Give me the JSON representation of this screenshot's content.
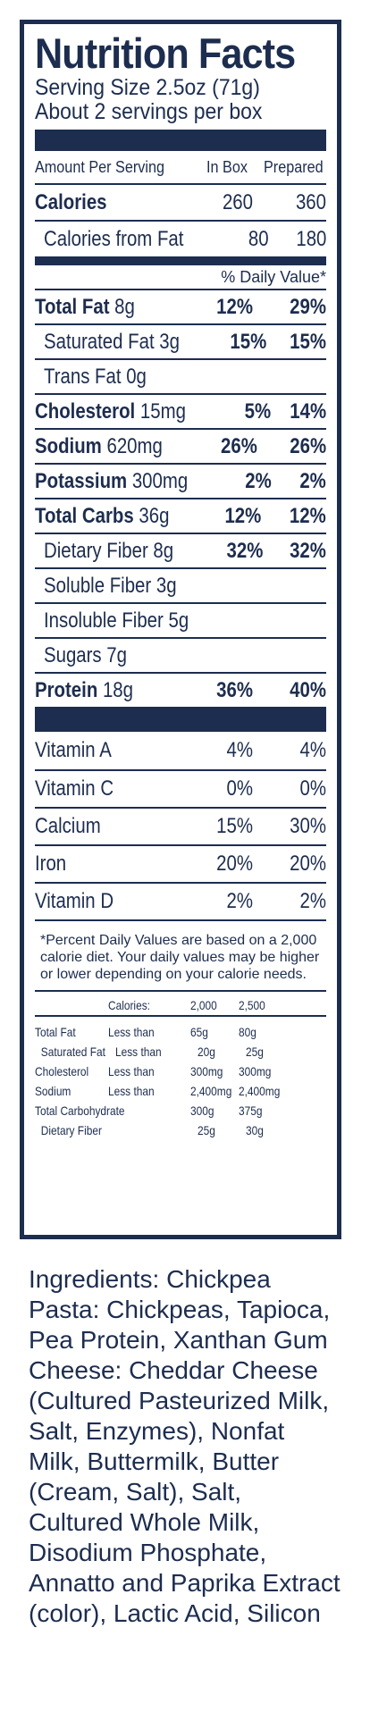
{
  "title": "Nutrition Facts",
  "serving_size": "Serving Size 2.5oz (71g)",
  "servings_per": "About 2 servings per box",
  "header": {
    "amount": "Amount Per Serving",
    "col1": "In Box",
    "col2": "Prepared"
  },
  "calories": {
    "label": "Calories",
    "v1": "260",
    "v2": "360"
  },
  "calories_fat": {
    "label": "Calories from Fat",
    "v1": "80",
    "v2": "180"
  },
  "dv_label": "% Daily Value*",
  "nutrients": [
    {
      "name": "Total Fat",
      "amount": " 8g",
      "v1": "12%",
      "v2": "29%",
      "bold": true,
      "indent": false
    },
    {
      "name": "Saturated Fat 3g",
      "amount": "",
      "v1": "15%",
      "v2": "15%",
      "bold": false,
      "indent": true
    },
    {
      "name": "Trans Fat 0g",
      "amount": "",
      "v1": "",
      "v2": "",
      "bold": false,
      "indent": true
    },
    {
      "name": "Cholesterol",
      "amount": " 15mg",
      "v1": "5%",
      "v2": "14%",
      "bold": true,
      "indent": false
    },
    {
      "name": "Sodium",
      "amount": " 620mg",
      "v1": "26%",
      "v2": "26%",
      "bold": true,
      "indent": false
    },
    {
      "name": "Potassium",
      "amount": " 300mg",
      "v1": "2%",
      "v2": "2%",
      "bold": true,
      "indent": false
    },
    {
      "name": "Total Carbs",
      "amount": " 36g",
      "v1": "12%",
      "v2": "12%",
      "bold": true,
      "indent": false
    },
    {
      "name": "Dietary Fiber 8g",
      "amount": "",
      "v1": "32%",
      "v2": "32%",
      "bold": false,
      "indent": true
    },
    {
      "name": "Soluble Fiber 3g",
      "amount": "",
      "v1": "",
      "v2": "",
      "bold": false,
      "indent": true
    },
    {
      "name": "Insoluble Fiber 5g",
      "amount": "",
      "v1": "",
      "v2": "",
      "bold": false,
      "indent": true
    },
    {
      "name": "Sugars 7g",
      "amount": "",
      "v1": "",
      "v2": "",
      "bold": false,
      "indent": true
    },
    {
      "name": "Protein",
      "amount": " 18g",
      "v1": "36%",
      "v2": "40%",
      "bold": true,
      "indent": false
    }
  ],
  "vitamins": [
    {
      "name": "Vitamin A",
      "v1": "4%",
      "v2": "4%"
    },
    {
      "name": "Vitamin C",
      "v1": "0%",
      "v2": "0%"
    },
    {
      "name": "Calcium",
      "v1": "15%",
      "v2": "30%"
    },
    {
      "name": "Iron",
      "v1": "20%",
      "v2": "20%"
    },
    {
      "name": "Vitamin D",
      "v1": "2%",
      "v2": "2%"
    }
  ],
  "footnote": "*Percent Daily Values are based on a 2,000 calorie diet. Your daily values may be higher or lower depending on your calorie needs.",
  "footer_table": {
    "header": [
      "",
      "Calories:",
      "2,000",
      "2,500"
    ],
    "rows": [
      [
        "Total Fat",
        "Less than",
        "65g",
        "80g"
      ],
      [
        "  Saturated Fat",
        "Less than",
        "20g",
        "25g"
      ],
      [
        "Cholesterol",
        "Less than",
        "300mg",
        "300mg"
      ],
      [
        "Sodium",
        "Less than",
        "2,400mg",
        "2,400mg"
      ],
      [
        "Total Carbohydrate",
        "",
        "300g",
        "375g"
      ],
      [
        "  Dietary Fiber",
        "",
        "25g",
        "30g"
      ]
    ]
  },
  "ingredients": "Ingredients: Chickpea Pasta: Chickpeas, Tapioca, Pea Protein, Xanthan Gum Cheese: Cheddar Cheese (Cultured Pasteurized Milk, Salt, Enzymes), Nonfat Milk, Buttermilk, Butter (Cream, Salt), Salt, Cultured Whole Milk, Disodium Phosphate, Annatto and Paprika Extract (color), Lactic Acid, Silicon"
}
